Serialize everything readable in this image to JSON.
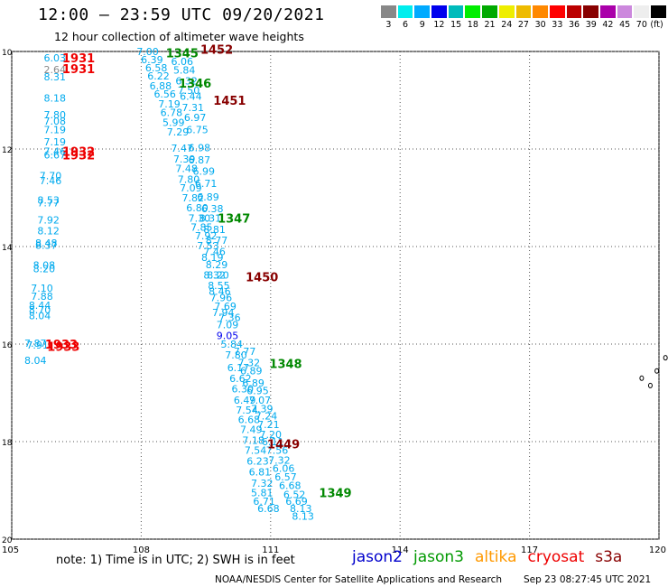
{
  "header": {
    "title": "12:00 – 23:59 UTC 09/20/2021",
    "subtitle": "12 hour collection of altimeter wave heights"
  },
  "legend": {
    "colors": [
      "#888888",
      "#00eeee",
      "#00aaff",
      "#0000ee",
      "#00bbbb",
      "#00ee00",
      "#00aa00",
      "#eeee00",
      "#eebb00",
      "#ff8800",
      "#ff0000",
      "#bb0000",
      "#880000",
      "#aa00aa",
      "#cc88dd",
      "#eeeeee",
      "#000000"
    ],
    "labels": [
      "3",
      "6",
      "9",
      "12",
      "15",
      "18",
      "21",
      "24",
      "27",
      "30",
      "33",
      "36",
      "39",
      "42",
      "45",
      "70",
      "(ft)"
    ]
  },
  "map": {
    "x_ticks": [
      "105",
      "108",
      "111",
      "114",
      "117",
      "120"
    ],
    "y_ticks": [
      "10",
      "12",
      "14",
      "16",
      "18",
      "20"
    ],
    "lon_range": [
      105,
      120
    ],
    "lat_range": [
      10,
      20
    ],
    "islands": [
      [
        119.6,
        16.7
      ],
      [
        119.8,
        16.85
      ],
      [
        119.95,
        16.55
      ],
      [
        120.15,
        16.28
      ]
    ]
  },
  "swh_labels": [
    {
      "t": "6.03",
      "lon": 106.0,
      "lat": 10.13,
      "c": "#00aaee"
    },
    {
      "t": "2.64",
      "lon": 106.0,
      "lat": 10.37,
      "c": "#888888"
    },
    {
      "t": "8.31",
      "lon": 106.0,
      "lat": 10.52,
      "c": "#00aaee"
    },
    {
      "t": "8.18",
      "lon": 106.0,
      "lat": 10.95,
      "c": "#00aaee"
    },
    {
      "t": "7.80",
      "lon": 106.0,
      "lat": 11.3,
      "c": "#00aaee"
    },
    {
      "t": "7.08",
      "lon": 106.0,
      "lat": 11.43,
      "c": "#00aaee"
    },
    {
      "t": "7.19",
      "lon": 106.0,
      "lat": 11.6,
      "c": "#00aaee"
    },
    {
      "t": "7.19",
      "lon": 106.0,
      "lat": 11.85,
      "c": "#00aaee"
    },
    {
      "t": "7.46",
      "lon": 106.0,
      "lat": 12.05,
      "c": "#00aaee"
    },
    {
      "t": "6.67",
      "lon": 106.0,
      "lat": 12.12,
      "c": "#00aaee"
    },
    {
      "t": "7.70",
      "lon": 105.9,
      "lat": 12.55,
      "c": "#00aaee"
    },
    {
      "t": "7.46",
      "lon": 105.9,
      "lat": 12.65,
      "c": "#00aaee"
    },
    {
      "t": "8.53",
      "lon": 105.85,
      "lat": 13.05,
      "c": "#00aaee"
    },
    {
      "t": "7.77",
      "lon": 105.85,
      "lat": 13.1,
      "c": "#00aaee"
    },
    {
      "t": "7.92",
      "lon": 105.85,
      "lat": 13.45,
      "c": "#00aaee"
    },
    {
      "t": "8.12",
      "lon": 105.85,
      "lat": 13.68,
      "c": "#00aaee"
    },
    {
      "t": "8.48",
      "lon": 105.8,
      "lat": 13.93,
      "c": "#00aaee"
    },
    {
      "t": "8.37",
      "lon": 105.8,
      "lat": 13.97,
      "c": "#00aaee"
    },
    {
      "t": "8.08",
      "lon": 105.75,
      "lat": 14.38,
      "c": "#00aaee"
    },
    {
      "t": "8.20",
      "lon": 105.75,
      "lat": 14.45,
      "c": "#00aaee"
    },
    {
      "t": "7.10",
      "lon": 105.7,
      "lat": 14.85,
      "c": "#00aaee"
    },
    {
      "t": "7.88",
      "lon": 105.7,
      "lat": 15.02,
      "c": "#00aaee"
    },
    {
      "t": "8.44",
      "lon": 105.65,
      "lat": 15.2,
      "c": "#00aaee"
    },
    {
      "t": "8.70",
      "lon": 105.65,
      "lat": 15.3,
      "c": "#00aaee"
    },
    {
      "t": "8.04",
      "lon": 105.65,
      "lat": 15.42,
      "c": "#00aaee"
    },
    {
      "t": "7.87",
      "lon": 105.55,
      "lat": 15.98,
      "c": "#00aaee"
    },
    {
      "t": "7.91",
      "lon": 105.6,
      "lat": 16.02,
      "c": "#00aaee"
    },
    {
      "t": "8.04",
      "lon": 105.55,
      "lat": 16.33,
      "c": "#00aaee"
    },
    {
      "t": "7.00",
      "lon": 108.15,
      "lat": 10.0,
      "c": "#00aaee"
    },
    {
      "t": "6.39",
      "lon": 108.25,
      "lat": 10.17,
      "c": "#00aaee"
    },
    {
      "t": "6.06",
      "lon": 108.95,
      "lat": 10.2,
      "c": "#00aaee"
    },
    {
      "t": "6.58",
      "lon": 108.35,
      "lat": 10.33,
      "c": "#00aaee"
    },
    {
      "t": "5.84",
      "lon": 109.0,
      "lat": 10.38,
      "c": "#00aaee"
    },
    {
      "t": "6.22",
      "lon": 108.4,
      "lat": 10.5,
      "c": "#00aaee"
    },
    {
      "t": "6.32",
      "lon": 109.05,
      "lat": 10.6,
      "c": "#00aaee"
    },
    {
      "t": "6.88",
      "lon": 108.45,
      "lat": 10.7,
      "c": "#00aaee"
    },
    {
      "t": "7.50",
      "lon": 109.1,
      "lat": 10.8,
      "c": "#00aaee"
    },
    {
      "t": "6.56",
      "lon": 108.55,
      "lat": 10.87,
      "c": "#00aaee"
    },
    {
      "t": "6.44",
      "lon": 109.15,
      "lat": 10.92,
      "c": "#00aaee"
    },
    {
      "t": "7.19",
      "lon": 108.65,
      "lat": 11.07,
      "c": "#00aaee"
    },
    {
      "t": "7.31",
      "lon": 109.2,
      "lat": 11.15,
      "c": "#00aaee"
    },
    {
      "t": "6.78",
      "lon": 108.7,
      "lat": 11.25,
      "c": "#00aaee"
    },
    {
      "t": "6.97",
      "lon": 109.25,
      "lat": 11.35,
      "c": "#00aaee"
    },
    {
      "t": "5.99",
      "lon": 108.75,
      "lat": 11.45,
      "c": "#00aaee"
    },
    {
      "t": "6.75",
      "lon": 109.3,
      "lat": 11.6,
      "c": "#00aaee"
    },
    {
      "t": "7.29",
      "lon": 108.85,
      "lat": 11.65,
      "c": "#00aaee"
    },
    {
      "t": "7.47",
      "lon": 108.95,
      "lat": 11.98,
      "c": "#00aaee"
    },
    {
      "t": "6.98",
      "lon": 109.35,
      "lat": 11.97,
      "c": "#00aaee"
    },
    {
      "t": "7.39",
      "lon": 109.0,
      "lat": 12.2,
      "c": "#00aaee"
    },
    {
      "t": "6.87",
      "lon": 109.35,
      "lat": 12.22,
      "c": "#00aaee"
    },
    {
      "t": "7.48",
      "lon": 109.05,
      "lat": 12.4,
      "c": "#00aaee"
    },
    {
      "t": "6.99",
      "lon": 109.45,
      "lat": 12.45,
      "c": "#00aaee"
    },
    {
      "t": "7.80",
      "lon": 109.1,
      "lat": 12.62,
      "c": "#00aaee"
    },
    {
      "t": "6.71",
      "lon": 109.5,
      "lat": 12.7,
      "c": "#00aaee"
    },
    {
      "t": "7.09",
      "lon": 109.15,
      "lat": 12.8,
      "c": "#00aaee"
    },
    {
      "t": "7.82",
      "lon": 109.2,
      "lat": 13.0,
      "c": "#00aaee"
    },
    {
      "t": "6.89",
      "lon": 109.55,
      "lat": 12.98,
      "c": "#00aaee"
    },
    {
      "t": "6.80",
      "lon": 109.3,
      "lat": 13.2,
      "c": "#00aaee"
    },
    {
      "t": "6.38",
      "lon": 109.65,
      "lat": 13.22,
      "c": "#00aaee"
    },
    {
      "t": "7.30",
      "lon": 109.35,
      "lat": 13.42,
      "c": "#00aaee"
    },
    {
      "t": "8.31",
      "lon": 109.6,
      "lat": 13.42,
      "c": "#00aaee"
    },
    {
      "t": "7.85",
      "lon": 109.4,
      "lat": 13.6,
      "c": "#00aaee"
    },
    {
      "t": "8.81",
      "lon": 109.7,
      "lat": 13.65,
      "c": "#00aaee"
    },
    {
      "t": "7.92",
      "lon": 109.5,
      "lat": 13.78,
      "c": "#00aaee"
    },
    {
      "t": "8.77",
      "lon": 109.75,
      "lat": 13.87,
      "c": "#00aaee"
    },
    {
      "t": "7.53",
      "lon": 109.55,
      "lat": 13.98,
      "c": "#00aaee"
    },
    {
      "t": "7.46",
      "lon": 109.7,
      "lat": 14.1,
      "c": "#00aaee"
    },
    {
      "t": "8.19",
      "lon": 109.65,
      "lat": 14.22,
      "c": "#00aaee"
    },
    {
      "t": "8.29",
      "lon": 109.75,
      "lat": 14.37,
      "c": "#00aaee"
    },
    {
      "t": "8.32",
      "lon": 109.7,
      "lat": 14.58,
      "c": "#00aaee"
    },
    {
      "t": "8.20",
      "lon": 109.78,
      "lat": 14.58,
      "c": "#00aaee"
    },
    {
      "t": "8.55",
      "lon": 109.8,
      "lat": 14.8,
      "c": "#00aaee"
    },
    {
      "t": "8.46",
      "lon": 109.82,
      "lat": 14.92,
      "c": "#00aaee"
    },
    {
      "t": "7.96",
      "lon": 109.85,
      "lat": 15.05,
      "c": "#00aaee"
    },
    {
      "t": "7.69",
      "lon": 109.95,
      "lat": 15.22,
      "c": "#00aaee"
    },
    {
      "t": "7.94",
      "lon": 109.9,
      "lat": 15.35,
      "c": "#00aaee"
    },
    {
      "t": "7.36",
      "lon": 110.05,
      "lat": 15.45,
      "c": "#00aaee"
    },
    {
      "t": "7.09",
      "lon": 110.0,
      "lat": 15.6,
      "c": "#00aaee"
    },
    {
      "t": "9.05",
      "lon": 110.0,
      "lat": 15.82,
      "c": "#0000ee"
    },
    {
      "t": "5.84",
      "lon": 110.1,
      "lat": 16.0,
      "c": "#00aaee"
    },
    {
      "t": "7.77",
      "lon": 110.4,
      "lat": 16.15,
      "c": "#00aaee"
    },
    {
      "t": "7.80",
      "lon": 110.2,
      "lat": 16.22,
      "c": "#00aaee"
    },
    {
      "t": "7.32",
      "lon": 110.5,
      "lat": 16.38,
      "c": "#00aaee"
    },
    {
      "t": "6.17",
      "lon": 110.25,
      "lat": 16.48,
      "c": "#00aaee"
    },
    {
      "t": "6.89",
      "lon": 110.55,
      "lat": 16.55,
      "c": "#00aaee"
    },
    {
      "t": "6.62",
      "lon": 110.3,
      "lat": 16.7,
      "c": "#00aaee"
    },
    {
      "t": "6.89",
      "lon": 110.6,
      "lat": 16.8,
      "c": "#00aaee"
    },
    {
      "t": "6.30",
      "lon": 110.35,
      "lat": 16.92,
      "c": "#00aaee"
    },
    {
      "t": "6.95",
      "lon": 110.7,
      "lat": 16.95,
      "c": "#00aaee"
    },
    {
      "t": "6.49",
      "lon": 110.4,
      "lat": 17.15,
      "c": "#00aaee"
    },
    {
      "t": "7.07",
      "lon": 110.75,
      "lat": 17.15,
      "c": "#00aaee"
    },
    {
      "t": "7.54",
      "lon": 110.45,
      "lat": 17.35,
      "c": "#00aaee"
    },
    {
      "t": "7.39",
      "lon": 110.8,
      "lat": 17.32,
      "c": "#00aaee"
    },
    {
      "t": "7.24",
      "lon": 110.9,
      "lat": 17.47,
      "c": "#00aaee"
    },
    {
      "t": "6.68",
      "lon": 110.5,
      "lat": 17.55,
      "c": "#00aaee"
    },
    {
      "t": "7.21",
      "lon": 110.95,
      "lat": 17.65,
      "c": "#00aaee"
    },
    {
      "t": "7.49",
      "lon": 110.55,
      "lat": 17.75,
      "c": "#00aaee"
    },
    {
      "t": "7.20",
      "lon": 111.0,
      "lat": 17.85,
      "c": "#00aaee"
    },
    {
      "t": "7.18",
      "lon": 110.6,
      "lat": 17.97,
      "c": "#00aaee"
    },
    {
      "t": "6.11",
      "lon": 111.05,
      "lat": 18.0,
      "c": "#00aaee"
    },
    {
      "t": "7.54",
      "lon": 110.65,
      "lat": 18.18,
      "c": "#00aaee"
    },
    {
      "t": "7.56",
      "lon": 111.15,
      "lat": 18.18,
      "c": "#00aaee"
    },
    {
      "t": "6.23",
      "lon": 110.7,
      "lat": 18.4,
      "c": "#00aaee"
    },
    {
      "t": "7.32",
      "lon": 111.2,
      "lat": 18.38,
      "c": "#00aaee"
    },
    {
      "t": "6.06",
      "lon": 111.3,
      "lat": 18.55,
      "c": "#00aaee"
    },
    {
      "t": "6.81",
      "lon": 110.75,
      "lat": 18.62,
      "c": "#00aaee"
    },
    {
      "t": "6.57",
      "lon": 111.35,
      "lat": 18.72,
      "c": "#00aaee"
    },
    {
      "t": "7.32",
      "lon": 110.8,
      "lat": 18.85,
      "c": "#00aaee"
    },
    {
      "t": "6.68",
      "lon": 111.45,
      "lat": 18.9,
      "c": "#00aaee"
    },
    {
      "t": "5.81",
      "lon": 110.8,
      "lat": 19.05,
      "c": "#00aaee"
    },
    {
      "t": "6.52",
      "lon": 111.55,
      "lat": 19.08,
      "c": "#00aaee"
    },
    {
      "t": "6.71",
      "lon": 110.85,
      "lat": 19.22,
      "c": "#00aaee"
    },
    {
      "t": "6.69",
      "lon": 111.6,
      "lat": 19.22,
      "c": "#00aaee"
    },
    {
      "t": "6.68",
      "lon": 110.95,
      "lat": 19.37,
      "c": "#00aaee"
    },
    {
      "t": "8.13",
      "lon": 111.7,
      "lat": 19.37,
      "c": "#00aaee"
    },
    {
      "t": "8.13",
      "lon": 111.75,
      "lat": 19.53,
      "c": "#00aaee"
    }
  ],
  "pass_labels": [
    {
      "t": "1931",
      "lon": 106.55,
      "lat": 10.13,
      "c": "#ee0000"
    },
    {
      "t": "1931",
      "lon": 106.55,
      "lat": 10.35,
      "c": "#ee0000"
    },
    {
      "t": "1932",
      "lon": 106.55,
      "lat": 12.05,
      "c": "#ee0000"
    },
    {
      "t": "1932",
      "lon": 106.55,
      "lat": 12.12,
      "c": "#ee0000"
    },
    {
      "t": "1933",
      "lon": 106.15,
      "lat": 16.0,
      "c": "#ee0000"
    },
    {
      "t": "1933",
      "lon": 106.2,
      "lat": 16.05,
      "c": "#ee0000"
    },
    {
      "t": "1345",
      "lon": 108.95,
      "lat": 10.03,
      "c": "#008800"
    },
    {
      "t": "1452",
      "lon": 109.75,
      "lat": 9.95,
      "c": "#880000"
    },
    {
      "t": "1346",
      "lon": 109.25,
      "lat": 10.65,
      "c": "#008800"
    },
    {
      "t": "1451",
      "lon": 110.05,
      "lat": 11.0,
      "c": "#880000"
    },
    {
      "t": "1347",
      "lon": 110.15,
      "lat": 13.42,
      "c": "#008800"
    },
    {
      "t": "1450",
      "lon": 110.8,
      "lat": 14.62,
      "c": "#880000"
    },
    {
      "t": "1348",
      "lon": 111.35,
      "lat": 16.4,
      "c": "#008800"
    },
    {
      "t": "1449",
      "lon": 111.3,
      "lat": 18.05,
      "c": "#880000"
    },
    {
      "t": "1349",
      "lon": 112.5,
      "lat": 19.05,
      "c": "#008800"
    }
  ],
  "note": "note: 1) Time is in UTC; 2) SWH is in feet",
  "sources": [
    {
      "name": "jason2",
      "color": "#0000cc"
    },
    {
      "name": "jason3",
      "color": "#009900"
    },
    {
      "name": "altika",
      "color": "#ff9900"
    },
    {
      "name": "cryosat",
      "color": "#ee0000"
    },
    {
      "name": "s3a",
      "color": "#880000"
    }
  ],
  "credit": "NOAA/NESDIS Center for Satellite Applications and Research",
  "timestamp": "Sep 23 08:27:45 UTC 2021"
}
